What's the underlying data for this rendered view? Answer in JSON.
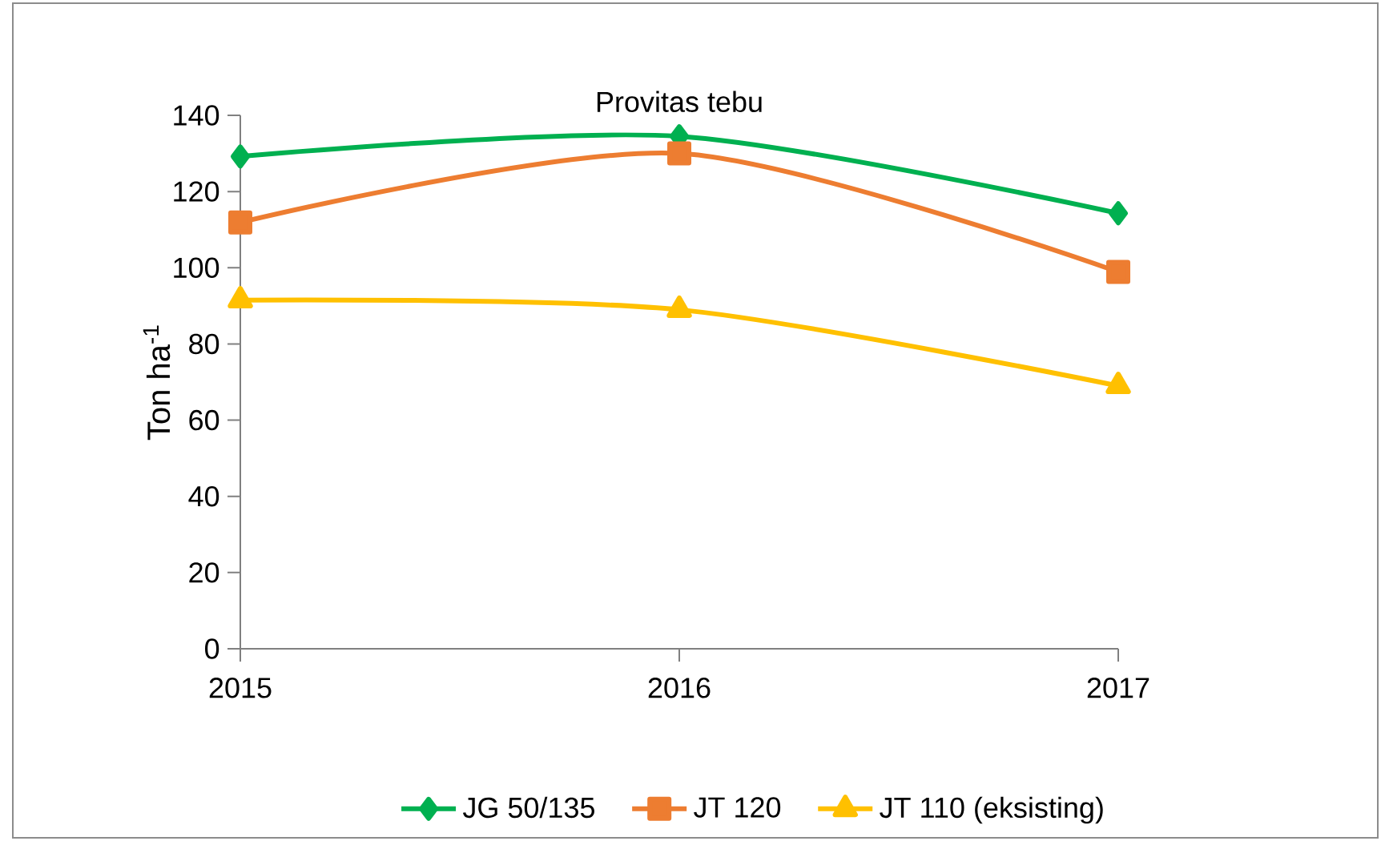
{
  "chart_data": {
    "type": "line",
    "title": "Provitas tebu",
    "ylabel": "Ton ha$^{-1}$",
    "categories": [
      "2015",
      "2016",
      "2017"
    ],
    "series": [
      {
        "name": "JG 50/135",
        "color": "#00b050",
        "marker": "diamond",
        "values": [
          129.2,
          134.5,
          114.3
        ]
      },
      {
        "name": "JT 120",
        "color": "#ed7d31",
        "marker": "square",
        "values": [
          111.9,
          130,
          98.9
        ]
      },
      {
        "name": "JT 110 (eksisting)",
        "color": "#ffc000",
        "marker": "triangle",
        "values": [
          91.5,
          89,
          69
        ]
      }
    ],
    "ylim": [
      0,
      140
    ],
    "yticks": [
      0,
      20,
      40,
      60,
      80,
      100,
      120,
      140
    ],
    "grid": false,
    "legend": "bottom",
    "line_style": "solid"
  }
}
